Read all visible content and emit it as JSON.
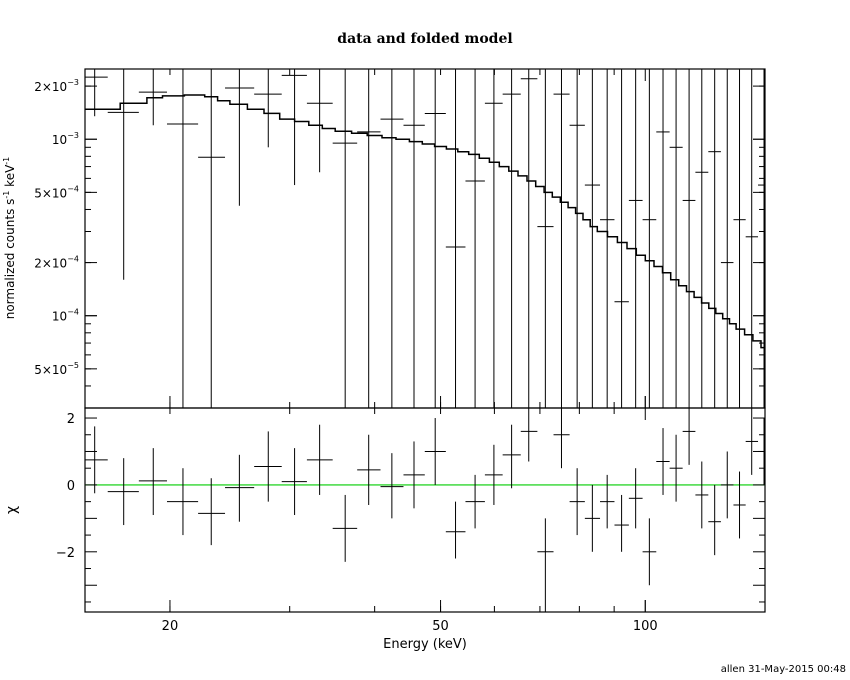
{
  "title": "data and folded model",
  "footer": "allen 31-May-2015 00:48",
  "chart_data": [
    {
      "type": "scatter",
      "panel": "top",
      "xlabel": "Energy (keV)",
      "ylabel_main": "normalized counts s",
      "ylabel_sup1": "-1",
      "ylabel_mid": " keV",
      "ylabel_sup2": "-1",
      "xscale": "log",
      "yscale": "log",
      "xlim": [
        15,
        150
      ],
      "ylim": [
        3e-05,
        0.0025
      ],
      "yticks": [
        {
          "v": 5e-05,
          "m": "5×10",
          "e": "−5"
        },
        {
          "v": 0.0001,
          "m": "10",
          "e": "−4"
        },
        {
          "v": 0.0002,
          "m": "2×10",
          "e": "−4"
        },
        {
          "v": 0.0005,
          "m": "5×10",
          "e": "−4"
        },
        {
          "v": 0.001,
          "m": "10",
          "e": "−3"
        },
        {
          "v": 0.002,
          "m": "2×10",
          "e": "−3"
        }
      ],
      "series": [
        {
          "kind": "data-with-errors",
          "points": [
            [
              15.5,
              0.00225,
              15.0,
              16.2,
              0.00135,
              0.0025
            ],
            [
              17.1,
              0.00142,
              16.2,
              18.0,
              0.00016,
              0.0025
            ],
            [
              18.9,
              0.00185,
              18.0,
              19.8,
              0.0012,
              0.0025
            ],
            [
              20.9,
              0.00122,
              19.8,
              22.0,
              3e-05,
              0.0025
            ],
            [
              23.0,
              0.00079,
              22.0,
              24.1,
              3e-05,
              0.0025
            ],
            [
              25.3,
              0.00195,
              24.1,
              26.6,
              0.00042,
              0.0025
            ],
            [
              27.9,
              0.0018,
              26.6,
              29.2,
              0.0009,
              0.0025
            ],
            [
              30.5,
              0.0023,
              29.2,
              31.8,
              0.00055,
              0.0025
            ],
            [
              33.2,
              0.0016,
              31.8,
              34.7,
              0.00065,
              0.0025
            ],
            [
              36.2,
              0.00095,
              34.7,
              37.7,
              3e-05,
              0.0025
            ],
            [
              39.2,
              0.0011,
              37.7,
              40.8,
              3e-05,
              0.0025
            ],
            [
              42.4,
              0.0013,
              40.8,
              44.1,
              3e-05,
              0.0025
            ],
            [
              45.7,
              0.0012,
              44.1,
              47.4,
              3e-05,
              0.0025
            ],
            [
              49.1,
              0.0014,
              47.4,
              50.9,
              3e-05,
              0.0025
            ],
            [
              52.6,
              0.000245,
              50.9,
              54.4,
              3e-05,
              0.0025
            ],
            [
              56.2,
              0.00058,
              54.4,
              58.1,
              3e-05,
              0.0025
            ],
            [
              59.9,
              0.0016,
              58.1,
              61.7,
              3e-05,
              0.0025
            ],
            [
              63.6,
              0.0018,
              61.7,
              65.6,
              3e-05,
              0.0025
            ],
            [
              67.4,
              0.0022,
              65.6,
              69.4,
              3e-05,
              0.0025
            ],
            [
              71.3,
              0.00032,
              69.4,
              73.3,
              3e-05,
              0.0025
            ],
            [
              75.3,
              0.0018,
              73.3,
              77.4,
              3e-05,
              0.0025
            ],
            [
              79.4,
              0.0012,
              77.4,
              81.5,
              3e-05,
              0.0025
            ],
            [
              83.6,
              0.00055,
              81.5,
              85.8,
              3e-05,
              0.0025
            ],
            [
              87.9,
              0.00035,
              85.8,
              90.1,
              3e-05,
              0.0025
            ],
            [
              92.3,
              0.00012,
              90.1,
              94.6,
              3e-05,
              0.0025
            ],
            [
              96.8,
              0.00045,
              94.6,
              99.1,
              3e-05,
              0.0025
            ],
            [
              101.4,
              0.00035,
              99.1,
              103.8,
              3e-05,
              0.0025
            ],
            [
              106.2,
              0.0011,
              103.8,
              108.6,
              3e-05,
              0.0025
            ],
            [
              111.0,
              0.0009,
              108.6,
              113.5,
              3e-05,
              0.0025
            ],
            [
              116.0,
              0.00045,
              113.5,
              118.5,
              3e-05,
              0.0025
            ],
            [
              121.1,
              0.00065,
              118.5,
              123.8,
              3e-05,
              0.0025
            ],
            [
              126.5,
              0.00085,
              123.8,
              129.2,
              3e-05,
              0.0025
            ],
            [
              132.0,
              0.0002,
              129.2,
              134.8,
              3e-05,
              0.0025
            ],
            [
              137.6,
              0.00035,
              134.8,
              140.5,
              3e-05,
              0.0025
            ],
            [
              143.4,
              0.00028,
              140.5,
              146.5,
              3e-05,
              0.0025
            ],
            [
              149.5,
              0.00055,
              146.5,
              150.0,
              3e-05,
              0.0025
            ]
          ]
        },
        {
          "kind": "model-step",
          "points": [
            [
              15.0,
              0.00148
            ],
            [
              16.9,
              0.0016
            ],
            [
              18.5,
              0.00172
            ],
            [
              19.5,
              0.00176
            ],
            [
              21.0,
              0.00178
            ],
            [
              22.5,
              0.00174
            ],
            [
              23.5,
              0.00165
            ],
            [
              24.5,
              0.00158
            ],
            [
              26.0,
              0.00148
            ],
            [
              27.5,
              0.0014
            ],
            [
              29.0,
              0.0013
            ],
            [
              30.5,
              0.00126
            ],
            [
              32.0,
              0.0012
            ],
            [
              33.5,
              0.00115
            ],
            [
              35.0,
              0.00111
            ],
            [
              37.0,
              0.00108
            ],
            [
              39.0,
              0.00105
            ],
            [
              41.0,
              0.00102
            ],
            [
              43.0,
              0.001
            ],
            [
              45.0,
              0.00097
            ],
            [
              47.0,
              0.00094
            ],
            [
              49.0,
              0.00091
            ],
            [
              51.0,
              0.00088
            ],
            [
              53.0,
              0.00085
            ],
            [
              55.0,
              0.00082
            ],
            [
              57.0,
              0.00078
            ],
            [
              59.0,
              0.00074
            ],
            [
              61.0,
              0.0007
            ],
            [
              63.0,
              0.00066
            ],
            [
              65.0,
              0.00062
            ],
            [
              67.0,
              0.00058
            ],
            [
              69.0,
              0.00054
            ],
            [
              71.0,
              0.0005
            ],
            [
              73.0,
              0.00047
            ],
            [
              75.0,
              0.00044
            ],
            [
              77.0,
              0.00041
            ],
            [
              79.0,
              0.00038
            ],
            [
              81.0,
              0.00035
            ],
            [
              83.0,
              0.00032
            ],
            [
              85.0,
              0.0003
            ],
            [
              88.0,
              0.00028
            ],
            [
              91.0,
              0.00026
            ],
            [
              94.0,
              0.00024
            ],
            [
              97.0,
              0.00022
            ],
            [
              100.0,
              0.000205
            ],
            [
              103.0,
              0.00019
            ],
            [
              106.0,
              0.000175
            ],
            [
              109.0,
              0.00016
            ],
            [
              112.0,
              0.000148
            ],
            [
              115.0,
              0.000137
            ],
            [
              118.0,
              0.000127
            ],
            [
              121.0,
              0.000118
            ],
            [
              124.0,
              0.00011
            ],
            [
              127.0,
              0.000103
            ],
            [
              130.0,
              9.6e-05
            ],
            [
              133.0,
              9e-05
            ],
            [
              136.0,
              8.4e-05
            ],
            [
              140.0,
              7.8e-05
            ],
            [
              144.0,
              7.2e-05
            ],
            [
              148.0,
              6.6e-05
            ],
            [
              150.0,
              6.6e-05
            ]
          ]
        }
      ]
    },
    {
      "type": "scatter",
      "panel": "bottom",
      "xlabel": "Energy (keV)",
      "ylabel": "χ",
      "xscale": "log",
      "xlim": [
        15,
        150
      ],
      "ylim": [
        -3.8,
        2.3
      ],
      "yticks": [
        {
          "v": -2,
          "t": "−2"
        },
        {
          "v": 0,
          "t": "0"
        },
        {
          "v": 2,
          "t": "2"
        }
      ],
      "xticks": [
        {
          "v": 20,
          "t": "20"
        },
        {
          "v": 50,
          "t": "50"
        },
        {
          "v": 100,
          "t": "100"
        }
      ],
      "zero_line_color": "#00cc00",
      "series": [
        {
          "kind": "residuals",
          "points": [
            [
              15.5,
              0.75,
              15.0,
              16.2,
              -0.25,
              1.75
            ],
            [
              17.1,
              -0.2,
              16.2,
              18.0,
              -1.2,
              0.8
            ],
            [
              18.9,
              0.12,
              18.0,
              19.8,
              -0.9,
              1.1
            ],
            [
              20.9,
              -0.5,
              19.8,
              22.0,
              -1.5,
              0.5
            ],
            [
              23.0,
              -0.85,
              22.0,
              24.1,
              -1.8,
              0.2
            ],
            [
              25.3,
              -0.08,
              24.1,
              26.6,
              -1.1,
              0.9
            ],
            [
              27.9,
              0.55,
              26.6,
              29.2,
              -0.5,
              1.6
            ],
            [
              30.5,
              0.1,
              29.2,
              31.8,
              -0.9,
              1.1
            ],
            [
              33.2,
              0.75,
              31.8,
              34.7,
              -0.3,
              1.8
            ],
            [
              36.2,
              -1.3,
              34.7,
              37.7,
              -2.3,
              -0.3
            ],
            [
              39.2,
              0.45,
              37.7,
              40.8,
              -0.6,
              1.5
            ],
            [
              42.4,
              -0.05,
              40.8,
              44.1,
              -1.0,
              0.95
            ],
            [
              45.7,
              0.3,
              44.1,
              47.4,
              -0.7,
              1.3
            ],
            [
              49.1,
              1.0,
              47.4,
              50.9,
              0.0,
              2.0
            ],
            [
              52.6,
              -1.4,
              50.9,
              54.4,
              -2.2,
              -0.5
            ],
            [
              56.2,
              -0.5,
              54.4,
              58.1,
              -1.3,
              0.3
            ],
            [
              59.9,
              0.3,
              58.1,
              61.7,
              -0.6,
              1.2
            ],
            [
              63.6,
              0.9,
              61.7,
              65.6,
              -0.1,
              1.8
            ],
            [
              67.4,
              1.6,
              65.6,
              69.4,
              0.7,
              2.3
            ],
            [
              71.3,
              -2.0,
              69.4,
              73.3,
              -3.8,
              -1.0
            ],
            [
              75.3,
              1.5,
              73.3,
              77.4,
              0.5,
              2.3
            ],
            [
              79.4,
              -0.5,
              77.4,
              81.5,
              -1.5,
              0.5
            ],
            [
              83.6,
              -1.0,
              81.5,
              85.8,
              -2.0,
              0.0
            ],
            [
              87.9,
              -0.5,
              85.8,
              90.1,
              -1.3,
              0.3
            ],
            [
              92.3,
              -1.2,
              90.1,
              94.6,
              -2.0,
              -0.3
            ],
            [
              96.8,
              -0.4,
              94.6,
              99.1,
              -1.3,
              0.5
            ],
            [
              101.4,
              -2.0,
              99.1,
              103.8,
              -3.0,
              -1.0
            ],
            [
              106.2,
              0.7,
              103.8,
              108.6,
              -0.3,
              1.7
            ],
            [
              111.0,
              0.5,
              108.6,
              113.5,
              -0.5,
              1.5
            ],
            [
              116.0,
              1.6,
              113.5,
              118.5,
              0.6,
              2.3
            ],
            [
              121.1,
              -0.3,
              118.5,
              123.8,
              -1.3,
              0.7
            ],
            [
              126.5,
              -1.1,
              123.8,
              129.2,
              -2.1,
              0.0
            ],
            [
              132.0,
              0.0,
              129.2,
              134.8,
              -1.0,
              1.0
            ],
            [
              137.6,
              -0.6,
              134.8,
              140.5,
              -1.6,
              0.4
            ],
            [
              143.4,
              1.3,
              140.5,
              146.5,
              0.3,
              2.3
            ],
            [
              149.5,
              1.0,
              146.5,
              150.0,
              0.0,
              2.0
            ]
          ]
        }
      ]
    }
  ]
}
